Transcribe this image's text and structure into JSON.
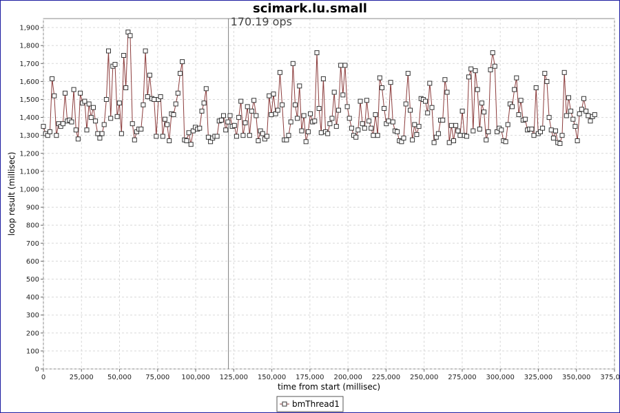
{
  "chart_data": {
    "type": "line",
    "title": "scimark.lu.small",
    "annotation": "170.19 ops",
    "annotation_x": 121500,
    "xlabel": "time from start (millisec)",
    "ylabel": "loop result (millisec)",
    "xlim": [
      0,
      375000
    ],
    "ylim": [
      0,
      1950
    ],
    "x_ticks": [
      0,
      25000,
      50000,
      75000,
      100000,
      125000,
      150000,
      175000,
      200000,
      225000,
      250000,
      275000,
      300000,
      325000,
      350000,
      375000
    ],
    "x_tick_labels": [
      "0",
      "25,000",
      "50,000",
      "75,000",
      "100,000",
      "125,000",
      "150,000",
      "175,000",
      "200,000",
      "225,000",
      "250,000",
      "275,000",
      "300,000",
      "325,000",
      "350,000",
      "375,000"
    ],
    "y_ticks": [
      0,
      100,
      200,
      300,
      400,
      500,
      600,
      700,
      800,
      900,
      1000,
      1100,
      1200,
      1300,
      1400,
      1500,
      1600,
      1700,
      1800,
      1900
    ],
    "y_tick_labels": [
      "0",
      "100",
      "200",
      "300",
      "400",
      "500",
      "600",
      "700",
      "800",
      "900",
      "1,000",
      "1,100",
      "1,200",
      "1,300",
      "1,400",
      "1,500",
      "1,600",
      "1,700",
      "1,800",
      "1,900"
    ],
    "grid": true,
    "legend_position": "bottom-center",
    "colors": {
      "line": "#8b3a3a",
      "marker_fill": "#ffffff",
      "marker_stroke": "#333333",
      "grid": "#d8d8d8",
      "marker_line": "#7f7f7f"
    },
    "series": [
      {
        "name": "bmThread1",
        "y": [
          1350,
          1310,
          1300,
          1320,
          1615,
          1520,
          1300,
          1365,
          1350,
          1365,
          1535,
          1380,
          1385,
          1375,
          1555,
          1330,
          1280,
          1535,
          1480,
          1490,
          1330,
          1475,
          1400,
          1455,
          1380,
          1310,
          1285,
          1310,
          1360,
          1500,
          1770,
          1395,
          1685,
          1695,
          1405,
          1480,
          1310,
          1745,
          1565,
          1875,
          1855,
          1365,
          1275,
          1320,
          1335,
          1335,
          1470,
          1770,
          1515,
          1635,
          1505,
          1500,
          1295,
          1500,
          1515,
          1295,
          1390,
          1360,
          1270,
          1420,
          1415,
          1475,
          1535,
          1645,
          1710,
          1275,
          1270,
          1315,
          1250,
          1325,
          1345,
          1335,
          1340,
          1435,
          1480,
          1560,
          1290,
          1265,
          1285,
          1295,
          1295,
          1380,
          1385,
          1410,
          1330,
          1375,
          1410,
          1350,
          1355,
          1295,
          1400,
          1490,
          1300,
          1370,
          1460,
          1300,
          1435,
          1495,
          1410,
          1270,
          1325,
          1310,
          1280,
          1295,
          1520,
          1415,
          1530,
          1420,
          1440,
          1650,
          1470,
          1275,
          1275,
          1300,
          1375,
          1700,
          1470,
          1395,
          1575,
          1325,
          1410,
          1265,
          1320,
          1420,
          1375,
          1380,
          1760,
          1450,
          1315,
          1615,
          1320,
          1310,
          1365,
          1395,
          1540,
          1350,
          1440,
          1690,
          1525,
          1690,
          1460,
          1395,
          1340,
          1300,
          1290,
          1330,
          1490,
          1365,
          1340,
          1495,
          1380,
          1340,
          1300,
          1415,
          1300,
          1620,
          1565,
          1450,
          1365,
          1380,
          1595,
          1375,
          1325,
          1320,
          1270,
          1265,
          1285,
          1475,
          1645,
          1440,
          1275,
          1360,
          1305,
          1350,
          1505,
          1500,
          1490,
          1425,
          1590,
          1455,
          1260,
          1290,
          1310,
          1385,
          1385,
          1610,
          1540,
          1260,
          1355,
          1270,
          1355,
          1325,
          1300,
          1435,
          1300,
          1295,
          1625,
          1670,
          1325,
          1660,
          1555,
          1335,
          1480,
          1430,
          1275,
          1320,
          1665,
          1760,
          1685,
          1320,
          1340,
          1330,
          1270,
          1265,
          1360,
          1475,
          1460,
          1555,
          1620,
          1415,
          1495,
          1385,
          1390,
          1330,
          1335,
          1335,
          1300,
          1565,
          1310,
          1320,
          1340,
          1645,
          1600,
          1400,
          1330,
          1285,
          1325,
          1260,
          1255,
          1300,
          1650,
          1410,
          1510,
          1435,
          1390,
          1350,
          1270,
          1420,
          1445,
          1505,
          1435,
          1410,
          1380,
          1405,
          1415
        ]
      }
    ]
  }
}
